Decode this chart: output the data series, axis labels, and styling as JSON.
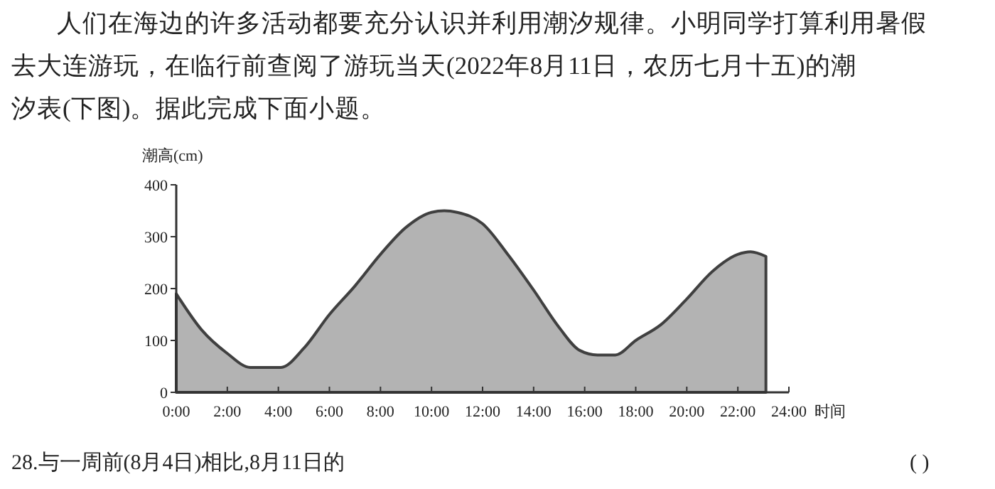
{
  "chart_data": {
    "type": "area",
    "ylabel": "潮高(cm)",
    "xlabel": "时间",
    "x": [
      0,
      1,
      2,
      2.9,
      4.1,
      5,
      6,
      7,
      8,
      9,
      10,
      10.5,
      11,
      12,
      13,
      14,
      15,
      15.8,
      16.5,
      17.2,
      18,
      19,
      20,
      21,
      22,
      22.5,
      23.1
    ],
    "series": [
      {
        "color": "#b3b3b3",
        "values": [
          190,
          120,
          75,
          48,
          48,
          85,
          150,
          205,
          266,
          318,
          347,
          350,
          347,
          325,
          265,
          197,
          125,
          81,
          72,
          72,
          100,
          131,
          180,
          233,
          266,
          271,
          262
        ]
      }
    ],
    "xlim": [
      0,
      24
    ],
    "ylim": [
      0,
      400
    ],
    "xticks": [
      {
        "value": 0,
        "label": "0:00"
      },
      {
        "value": 2,
        "label": "2:00"
      },
      {
        "value": 4,
        "label": "4:00"
      },
      {
        "value": 6,
        "label": "6:00"
      },
      {
        "value": 8,
        "label": "8:00"
      },
      {
        "value": 10,
        "label": "10:00"
      },
      {
        "value": 12,
        "label": "12:00"
      },
      {
        "value": 14,
        "label": "14:00"
      },
      {
        "value": 16,
        "label": "16:00"
      },
      {
        "value": 18,
        "label": "18:00"
      },
      {
        "value": 20,
        "label": "20:00"
      },
      {
        "value": 22,
        "label": "22:00"
      },
      {
        "value": 24,
        "label": "24:00"
      }
    ],
    "yticks": [
      0,
      100,
      200,
      300,
      400
    ],
    "grid": false,
    "annotations": [
      "人们在海边的许多活动都要充分认识并利用潮汐规律。小明同学打算利用暑假",
      "去大连游玩，在临行前查阅了游玩当天(2022年8月11日，农历七月十五)的潮",
      "汐表(下图)。据此完成下面小题。",
      "28.与一周前(8月4日)相比,8月11日的",
      "(    )"
    ]
  }
}
